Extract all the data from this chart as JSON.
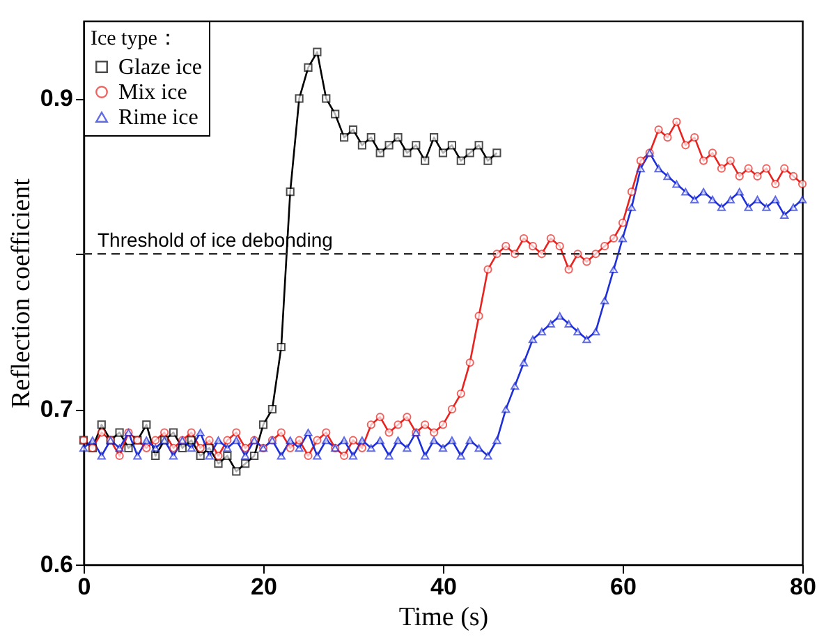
{
  "chart_data": {
    "type": "line",
    "xlabel": "Time (s)",
    "ylabel": "Reflection coefficient",
    "legend_title": "Ice type：",
    "x": [
      0,
      1,
      2,
      3,
      4,
      5,
      6,
      7,
      8,
      9,
      10,
      11,
      12,
      13,
      14,
      15,
      16,
      17,
      18,
      19,
      20,
      21,
      22,
      23,
      24,
      25,
      26,
      27,
      28,
      29,
      30,
      31,
      32,
      33,
      34,
      35,
      36,
      37,
      38,
      39,
      40,
      41,
      42,
      43,
      44,
      45,
      46,
      47,
      48,
      49,
      50,
      51,
      52,
      53,
      54,
      55,
      56,
      57,
      58,
      59,
      60,
      61,
      62,
      63,
      64,
      65,
      66,
      67,
      68,
      69,
      70,
      71,
      72,
      73,
      74,
      75,
      76,
      77,
      78,
      79,
      80
    ],
    "series": [
      {
        "name": "Glaze ice",
        "color": "#000000",
        "marker": "square",
        "values": [
          0.68,
          0.675,
          0.69,
          0.68,
          0.685,
          0.675,
          0.68,
          0.69,
          0.67,
          0.68,
          0.685,
          0.675,
          0.68,
          0.67,
          0.675,
          0.665,
          0.67,
          0.66,
          0.665,
          0.67,
          0.69,
          0.7,
          0.74,
          0.84,
          0.9,
          0.92,
          0.93,
          0.9,
          0.89,
          0.875,
          0.88,
          0.87,
          0.875,
          0.865,
          0.87,
          0.875,
          0.865,
          0.87,
          0.86,
          0.875,
          0.865,
          0.87,
          0.86,
          0.865,
          0.87,
          0.86,
          0.865,
          null,
          null,
          null,
          null,
          null,
          null,
          null,
          null,
          null,
          null,
          null,
          null,
          null,
          null,
          null,
          null,
          null,
          null,
          null,
          null,
          null,
          null,
          null,
          null,
          null,
          null,
          null,
          null,
          null,
          null,
          null,
          null,
          null,
          null
        ]
      },
      {
        "name": "Mix ice",
        "color": "#e8231f",
        "marker": "circle",
        "values": [
          0.68,
          0.675,
          0.685,
          0.68,
          0.67,
          0.685,
          0.68,
          0.675,
          0.68,
          0.685,
          0.675,
          0.68,
          0.685,
          0.675,
          0.68,
          0.67,
          0.68,
          0.685,
          0.675,
          0.68,
          0.675,
          0.68,
          0.685,
          0.675,
          0.68,
          0.67,
          0.68,
          0.685,
          0.675,
          0.67,
          0.68,
          0.675,
          0.69,
          0.695,
          0.685,
          0.69,
          0.695,
          0.685,
          0.69,
          0.685,
          0.69,
          0.7,
          0.71,
          0.73,
          0.76,
          0.79,
          0.8,
          0.805,
          0.8,
          0.81,
          0.805,
          0.8,
          0.81,
          0.805,
          0.79,
          0.8,
          0.795,
          0.8,
          0.805,
          0.81,
          0.82,
          0.84,
          0.86,
          0.865,
          0.88,
          0.875,
          0.885,
          0.87,
          0.875,
          0.86,
          0.865,
          0.855,
          0.86,
          0.85,
          0.855,
          0.85,
          0.855,
          0.845,
          0.855,
          0.85,
          0.845
        ]
      },
      {
        "name": "Rime ice",
        "color": "#1f2fd8",
        "marker": "triangle",
        "values": [
          0.675,
          0.68,
          0.67,
          0.68,
          0.675,
          0.685,
          0.67,
          0.68,
          0.675,
          0.68,
          0.67,
          0.68,
          0.675,
          0.685,
          0.67,
          0.68,
          0.675,
          0.68,
          0.67,
          0.68,
          0.675,
          0.68,
          0.67,
          0.68,
          0.675,
          0.685,
          0.67,
          0.68,
          0.675,
          0.68,
          0.67,
          0.68,
          0.675,
          0.68,
          0.67,
          0.68,
          0.675,
          0.685,
          0.67,
          0.68,
          0.675,
          0.68,
          0.67,
          0.68,
          0.675,
          0.67,
          0.68,
          0.7,
          0.715,
          0.73,
          0.745,
          0.75,
          0.755,
          0.76,
          0.755,
          0.75,
          0.745,
          0.75,
          0.77,
          0.79,
          0.81,
          0.83,
          0.855,
          0.865,
          0.855,
          0.85,
          0.845,
          0.84,
          0.835,
          0.84,
          0.835,
          0.83,
          0.835,
          0.84,
          0.83,
          0.835,
          0.83,
          0.835,
          0.825,
          0.83,
          0.835
        ]
      }
    ],
    "xlim": [
      0,
      80
    ],
    "xticks": [
      0,
      20,
      40,
      60,
      80
    ],
    "ylim": [
      0.6,
      0.95
    ],
    "yticks": [
      0.6,
      0.7,
      {
        "value": 0.8,
        "label": null
      },
      0.9
    ],
    "ref_lines": [
      {
        "axis": "y",
        "value": 0.8,
        "label": "Threshold of ice debonding",
        "color": "#333333",
        "line_style": "dashed"
      }
    ],
    "legend": "top left",
    "grid": false
  }
}
